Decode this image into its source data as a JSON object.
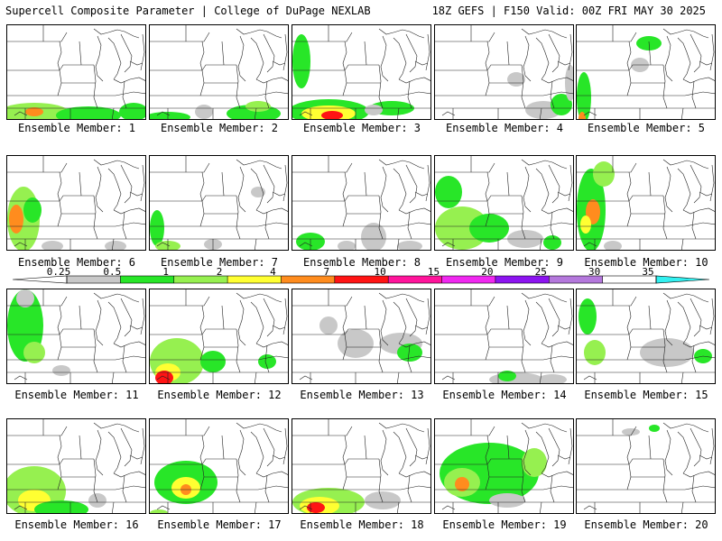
{
  "header": {
    "title": "Supercell Composite Parameter | College of DuPage NEXLAB",
    "run_info": "18Z GEFS | F150 Valid: 00Z FRI MAY 30 2025"
  },
  "panels": [
    {
      "label": "Ensemble Member: 1"
    },
    {
      "label": "Ensemble Member: 2"
    },
    {
      "label": "Ensemble Member: 3"
    },
    {
      "label": "Ensemble Member: 4"
    },
    {
      "label": "Ensemble Member: 5"
    },
    {
      "label": "Ensemble Member: 6"
    },
    {
      "label": "Ensemble Member: 7"
    },
    {
      "label": "Ensemble Member: 8"
    },
    {
      "label": "Ensemble Member: 9"
    },
    {
      "label": "Ensemble Member: 10"
    },
    {
      "label": "Ensemble Member: 11"
    },
    {
      "label": "Ensemble Member: 12"
    },
    {
      "label": "Ensemble Member: 13"
    },
    {
      "label": "Ensemble Member: 14"
    },
    {
      "label": "Ensemble Member: 15"
    },
    {
      "label": "Ensemble Member: 16"
    },
    {
      "label": "Ensemble Member: 17"
    },
    {
      "label": "Ensemble Member: 18"
    },
    {
      "label": "Ensemble Member: 19"
    },
    {
      "label": "Ensemble Member: 20"
    }
  ],
  "colorbar": {
    "ticks": [
      "0.25",
      "0.5",
      "1",
      "2",
      "4",
      "7",
      "10",
      "15",
      "20",
      "25",
      "30",
      "35"
    ],
    "colors": [
      "#c8c8c8",
      "#28e628",
      "#96f050",
      "#ffff32",
      "#ff8c1e",
      "#ff1414",
      "#ff149b",
      "#f028f0",
      "#8c14f0",
      "#b478dc",
      "#32f0f0"
    ]
  }
}
